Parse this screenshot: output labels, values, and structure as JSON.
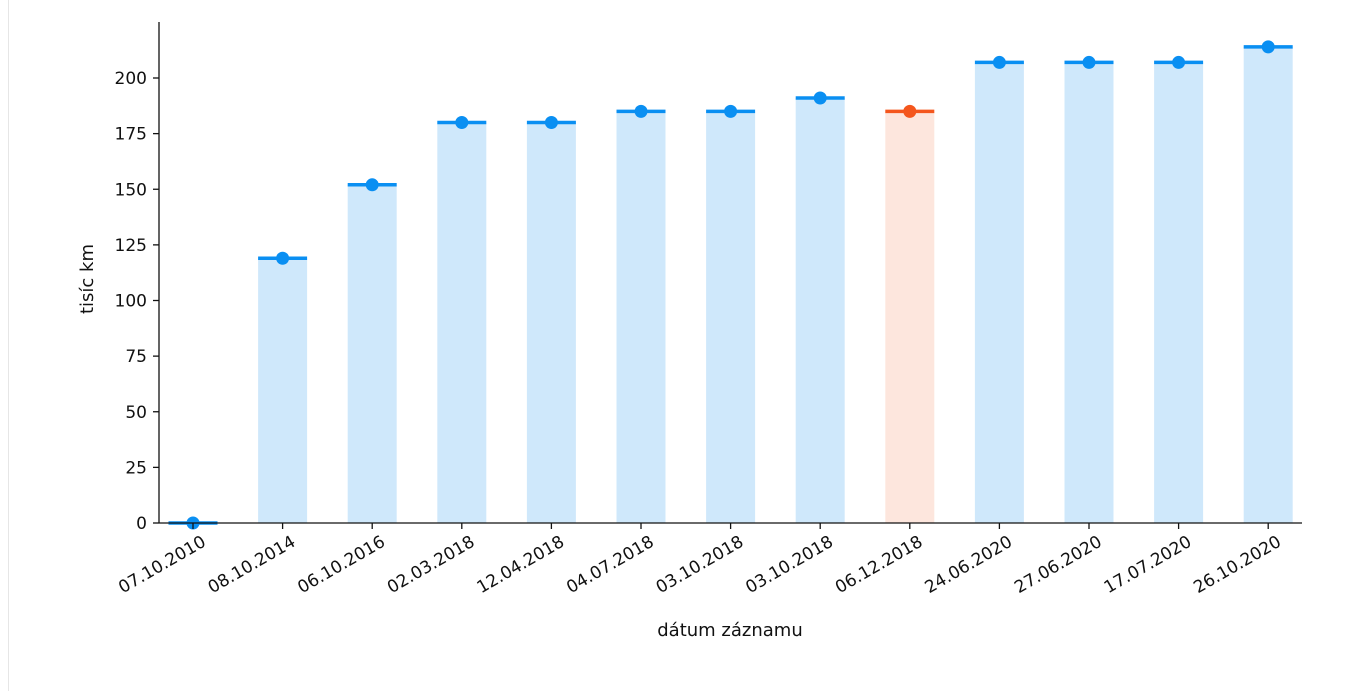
{
  "chart_data": {
    "type": "bar",
    "title": "",
    "xlabel": "dátum záznamu",
    "ylabel": "tisíc km",
    "ylim": [
      0,
      220
    ],
    "yticks": [
      0,
      25,
      50,
      75,
      100,
      125,
      150,
      175,
      200
    ],
    "grid": false,
    "legend": "none",
    "categories": [
      "07.10.2010",
      "08.10.2014",
      "06.10.2016",
      "02.03.2018",
      "12.04.2018",
      "04.07.2018",
      "03.10.2018",
      "03.10.2018",
      "06.12.2018",
      "24.06.2020",
      "27.06.2020",
      "17.07.2020",
      "26.10.2020"
    ],
    "values": [
      0,
      119,
      152,
      180,
      180,
      185,
      185,
      191,
      185,
      207,
      207,
      207,
      214
    ],
    "highlight_index": 8,
    "colors": {
      "bar": "#cfe8fb",
      "marker": "#0a8ff2",
      "highlight_bar": "#fde6dd",
      "highlight_marker": "#f4561d",
      "axis": "#111111"
    }
  }
}
